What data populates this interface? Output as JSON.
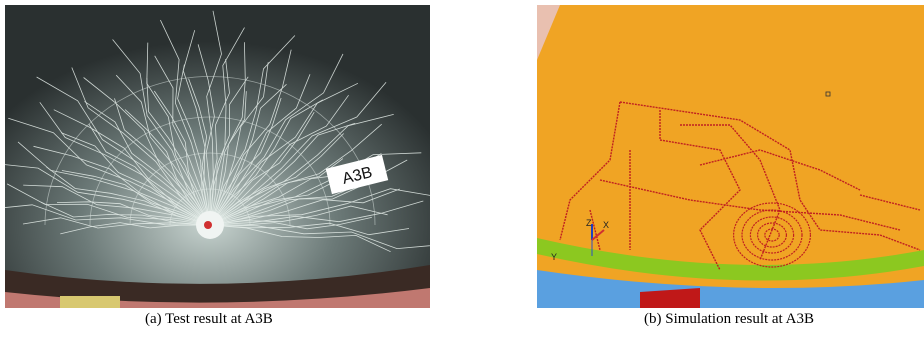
{
  "figure": {
    "panels": [
      {
        "photo_label": "A3B",
        "caption": "(a) Test result at A3B"
      },
      {
        "axis_labels": [
          "Z",
          "X",
          "Y"
        ],
        "caption": "(b) Simulation result at A3B"
      }
    ]
  }
}
